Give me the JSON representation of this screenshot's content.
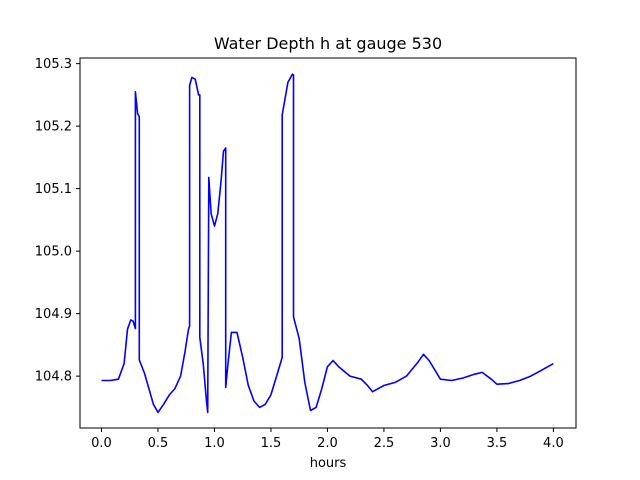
{
  "chart_data": {
    "type": "line",
    "title": "Water Depth h at gauge 530",
    "xlabel": "hours",
    "ylabel": "",
    "xlim": [
      -0.19,
      4.2
    ],
    "ylim": [
      104.717,
      105.309
    ],
    "xticks": [
      0.0,
      0.5,
      1.0,
      1.5,
      2.0,
      2.5,
      3.0,
      3.5,
      4.0
    ],
    "xtick_labels": [
      "0.0",
      "0.5",
      "1.0",
      "1.5",
      "2.0",
      "2.5",
      "3.0",
      "3.5",
      "4.0"
    ],
    "yticks": [
      104.8,
      104.9,
      105.0,
      105.1,
      105.2,
      105.3
    ],
    "ytick_labels": [
      "104.8",
      "104.9",
      "105.0",
      "105.1",
      "105.2",
      "105.3"
    ],
    "grid": false,
    "series": [
      {
        "color": "#0000ff",
        "x": [
          0.0,
          0.08,
          0.15,
          0.2,
          0.23,
          0.26,
          0.28,
          0.3,
          0.3,
          0.32,
          0.335,
          0.335,
          0.38,
          0.42,
          0.46,
          0.5,
          0.55,
          0.6,
          0.65,
          0.7,
          0.74,
          0.77,
          0.78,
          0.78,
          0.8,
          0.83,
          0.86,
          0.87,
          0.87,
          0.9,
          0.93,
          0.94,
          0.95,
          0.97,
          1.0,
          1.03,
          1.06,
          1.08,
          1.1,
          1.1,
          1.12,
          1.15,
          1.2,
          1.25,
          1.3,
          1.35,
          1.4,
          1.45,
          1.5,
          1.55,
          1.6,
          1.6,
          1.65,
          1.69,
          1.7,
          1.7,
          1.75,
          1.8,
          1.85,
          1.9,
          1.95,
          2.0,
          2.05,
          2.1,
          2.2,
          2.3,
          2.35,
          2.4,
          2.45,
          2.5,
          2.6,
          2.7,
          2.8,
          2.85,
          2.9,
          3.0,
          3.1,
          3.2,
          3.3,
          3.37,
          3.45,
          3.5,
          3.6,
          3.7,
          3.8,
          3.9,
          4.0
        ],
        "y": [
          104.793,
          104.793,
          104.795,
          104.82,
          104.875,
          104.89,
          104.888,
          104.876,
          105.255,
          105.22,
          105.215,
          104.826,
          104.805,
          104.78,
          104.755,
          104.742,
          104.755,
          104.77,
          104.78,
          104.8,
          104.84,
          104.875,
          104.88,
          105.265,
          105.278,
          105.275,
          105.25,
          105.25,
          104.862,
          104.82,
          104.76,
          104.742,
          105.118,
          105.06,
          105.04,
          105.06,
          105.115,
          105.16,
          105.165,
          104.782,
          104.82,
          104.87,
          104.87,
          104.83,
          104.785,
          104.76,
          104.75,
          104.755,
          104.77,
          104.8,
          104.83,
          105.218,
          105.27,
          105.283,
          105.282,
          104.895,
          104.86,
          104.79,
          104.745,
          104.75,
          104.78,
          104.815,
          104.825,
          104.815,
          104.8,
          104.795,
          104.786,
          104.775,
          104.78,
          104.785,
          104.79,
          104.8,
          104.822,
          104.835,
          104.825,
          104.795,
          104.793,
          104.797,
          104.803,
          104.806,
          104.795,
          104.787,
          104.788,
          104.793,
          104.8,
          104.81,
          104.82
        ]
      }
    ]
  }
}
